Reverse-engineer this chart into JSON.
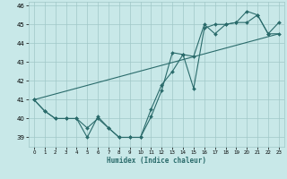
{
  "xlabel": "Humidex (Indice chaleur)",
  "bg_color": "#c8e8e8",
  "grid_color": "#a0c8c8",
  "line_color": "#2a6b6b",
  "xlim": [
    -0.5,
    23.5
  ],
  "ylim": [
    38.5,
    46.2
  ],
  "xticks": [
    0,
    1,
    2,
    3,
    4,
    5,
    6,
    7,
    8,
    9,
    10,
    11,
    12,
    13,
    14,
    15,
    16,
    17,
    18,
    19,
    20,
    21,
    22,
    23
  ],
  "yticks": [
    39,
    40,
    41,
    42,
    43,
    44,
    45,
    46
  ],
  "line1_x": [
    0,
    1,
    2,
    3,
    4,
    5,
    6,
    7,
    8,
    9,
    10,
    11,
    12,
    13,
    14,
    15,
    16,
    17,
    18,
    19,
    20,
    21,
    22,
    23
  ],
  "line1_y": [
    41,
    40.4,
    40.0,
    40.0,
    40.0,
    39.0,
    40.1,
    39.5,
    39.0,
    39.0,
    39.0,
    40.1,
    41.5,
    43.5,
    43.4,
    41.6,
    44.8,
    45.0,
    45.0,
    45.1,
    45.7,
    45.5,
    44.5,
    45.1
  ],
  "line2_x": [
    0,
    1,
    2,
    3,
    4,
    5,
    6,
    7,
    8,
    9,
    10,
    11,
    12,
    13,
    14,
    15,
    16,
    17,
    18,
    19,
    20,
    21,
    22,
    23
  ],
  "line2_y": [
    41,
    40.4,
    40.0,
    40.0,
    40.0,
    39.5,
    40.0,
    39.5,
    39.0,
    39.0,
    39.0,
    40.5,
    41.8,
    42.5,
    43.4,
    43.3,
    45.0,
    44.5,
    45.0,
    45.1,
    45.1,
    45.5,
    44.5,
    44.5
  ],
  "line3_x": [
    0,
    23
  ],
  "line3_y": [
    41.0,
    44.5
  ]
}
